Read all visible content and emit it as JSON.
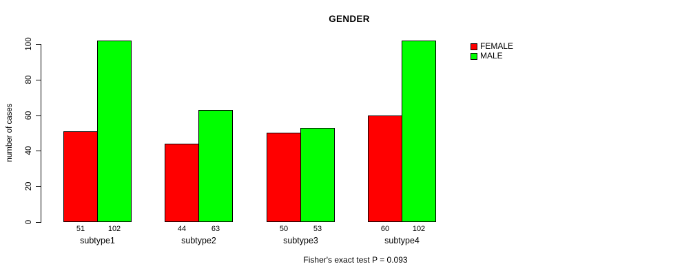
{
  "chart_data": {
    "type": "bar",
    "title": "GENDER",
    "xlabel": "",
    "ylabel": "number of cases",
    "categories": [
      "subtype1",
      "subtype2",
      "subtype3",
      "subtype4"
    ],
    "series": [
      {
        "name": "FEMALE",
        "color": "#ff0000",
        "values": [
          51,
          44,
          50,
          60
        ]
      },
      {
        "name": "MALE",
        "color": "#00ff00",
        "values": [
          102,
          63,
          53,
          102
        ]
      }
    ],
    "yticks": [
      0,
      20,
      40,
      60,
      80,
      100
    ],
    "ylim": [
      0,
      103
    ],
    "grid": false,
    "legend_position": "right-outside",
    "bar_value_labels": true,
    "footnote": "Fisher's exact test P = 0.093"
  },
  "colors": {
    "female": "#ff0000",
    "male": "#00ff00",
    "axis": "#000000",
    "background": "#ffffff"
  }
}
